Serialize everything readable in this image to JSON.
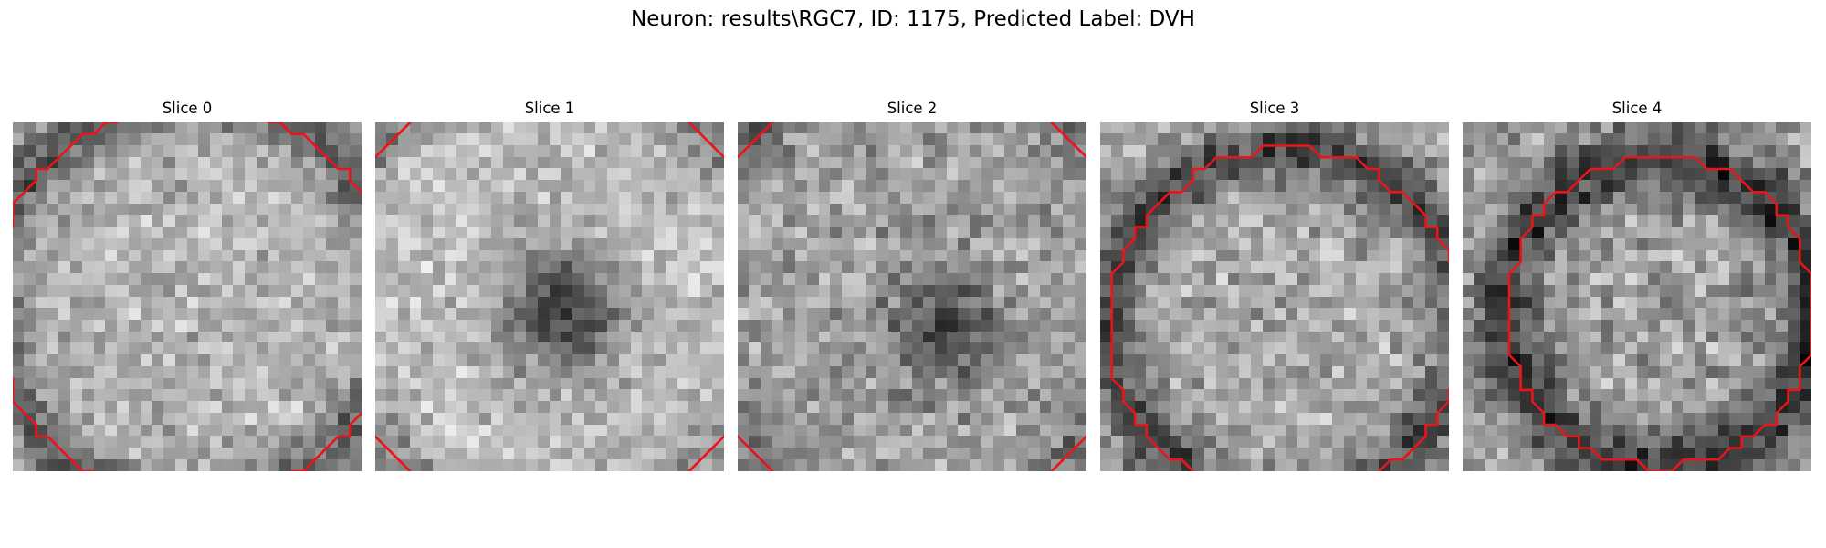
{
  "figure": {
    "title": "Neuron: results\\RGC7, ID: 1175, Predicted Label: DVH"
  },
  "grid_size": 30,
  "contour_color": "#e8161a",
  "colormap": "gray",
  "slices": [
    {
      "title": "Slice 0",
      "seed": 11,
      "base_gray": 178,
      "noise": 34,
      "ring": {
        "cx": 15.5,
        "cy": 15.5,
        "r": 17.5,
        "depth": 85,
        "width": 1.7
      },
      "blob": null,
      "contour": {
        "cx": 15.5,
        "cy": 15.5,
        "r": 17.2
      }
    },
    {
      "title": "Slice 1",
      "seed": 23,
      "base_gray": 190,
      "noise": 32,
      "ring": {
        "cx": 15.0,
        "cy": 15.0,
        "r": 19.2,
        "depth": 55,
        "width": 1.6
      },
      "blob": {
        "cx": 16.0,
        "cy": 16.3,
        "r": 3.6,
        "depth": 135
      },
      "contour": {
        "cx": 15.0,
        "cy": 15.0,
        "r": 19.2
      }
    },
    {
      "title": "Slice 2",
      "seed": 37,
      "base_gray": 160,
      "noise": 38,
      "ring": {
        "cx": 15.0,
        "cy": 15.0,
        "r": 19.3,
        "depth": 50,
        "width": 1.6
      },
      "blob": {
        "cx": 17.8,
        "cy": 17.5,
        "r": 3.2,
        "depth": 90
      },
      "contour": {
        "cx": 15.0,
        "cy": 15.0,
        "r": 19.3
      }
    },
    {
      "title": "Slice 3",
      "seed": 51,
      "base_gray": 168,
      "noise": 38,
      "ring": {
        "cx": 16.0,
        "cy": 17.5,
        "r": 15.2,
        "depth": 95,
        "width": 1.8
      },
      "blob": null,
      "contour": {
        "cx": 16.0,
        "cy": 17.5,
        "r": 15.2
      }
    },
    {
      "title": "Slice 4",
      "seed": 67,
      "base_gray": 160,
      "noise": 40,
      "ring": {
        "cx": 17.0,
        "cy": 16.3,
        "r": 13.3,
        "depth": 100,
        "width": 1.9
      },
      "blob": null,
      "contour": {
        "cx": 17.0,
        "cy": 16.3,
        "r": 13.3
      }
    }
  ]
}
